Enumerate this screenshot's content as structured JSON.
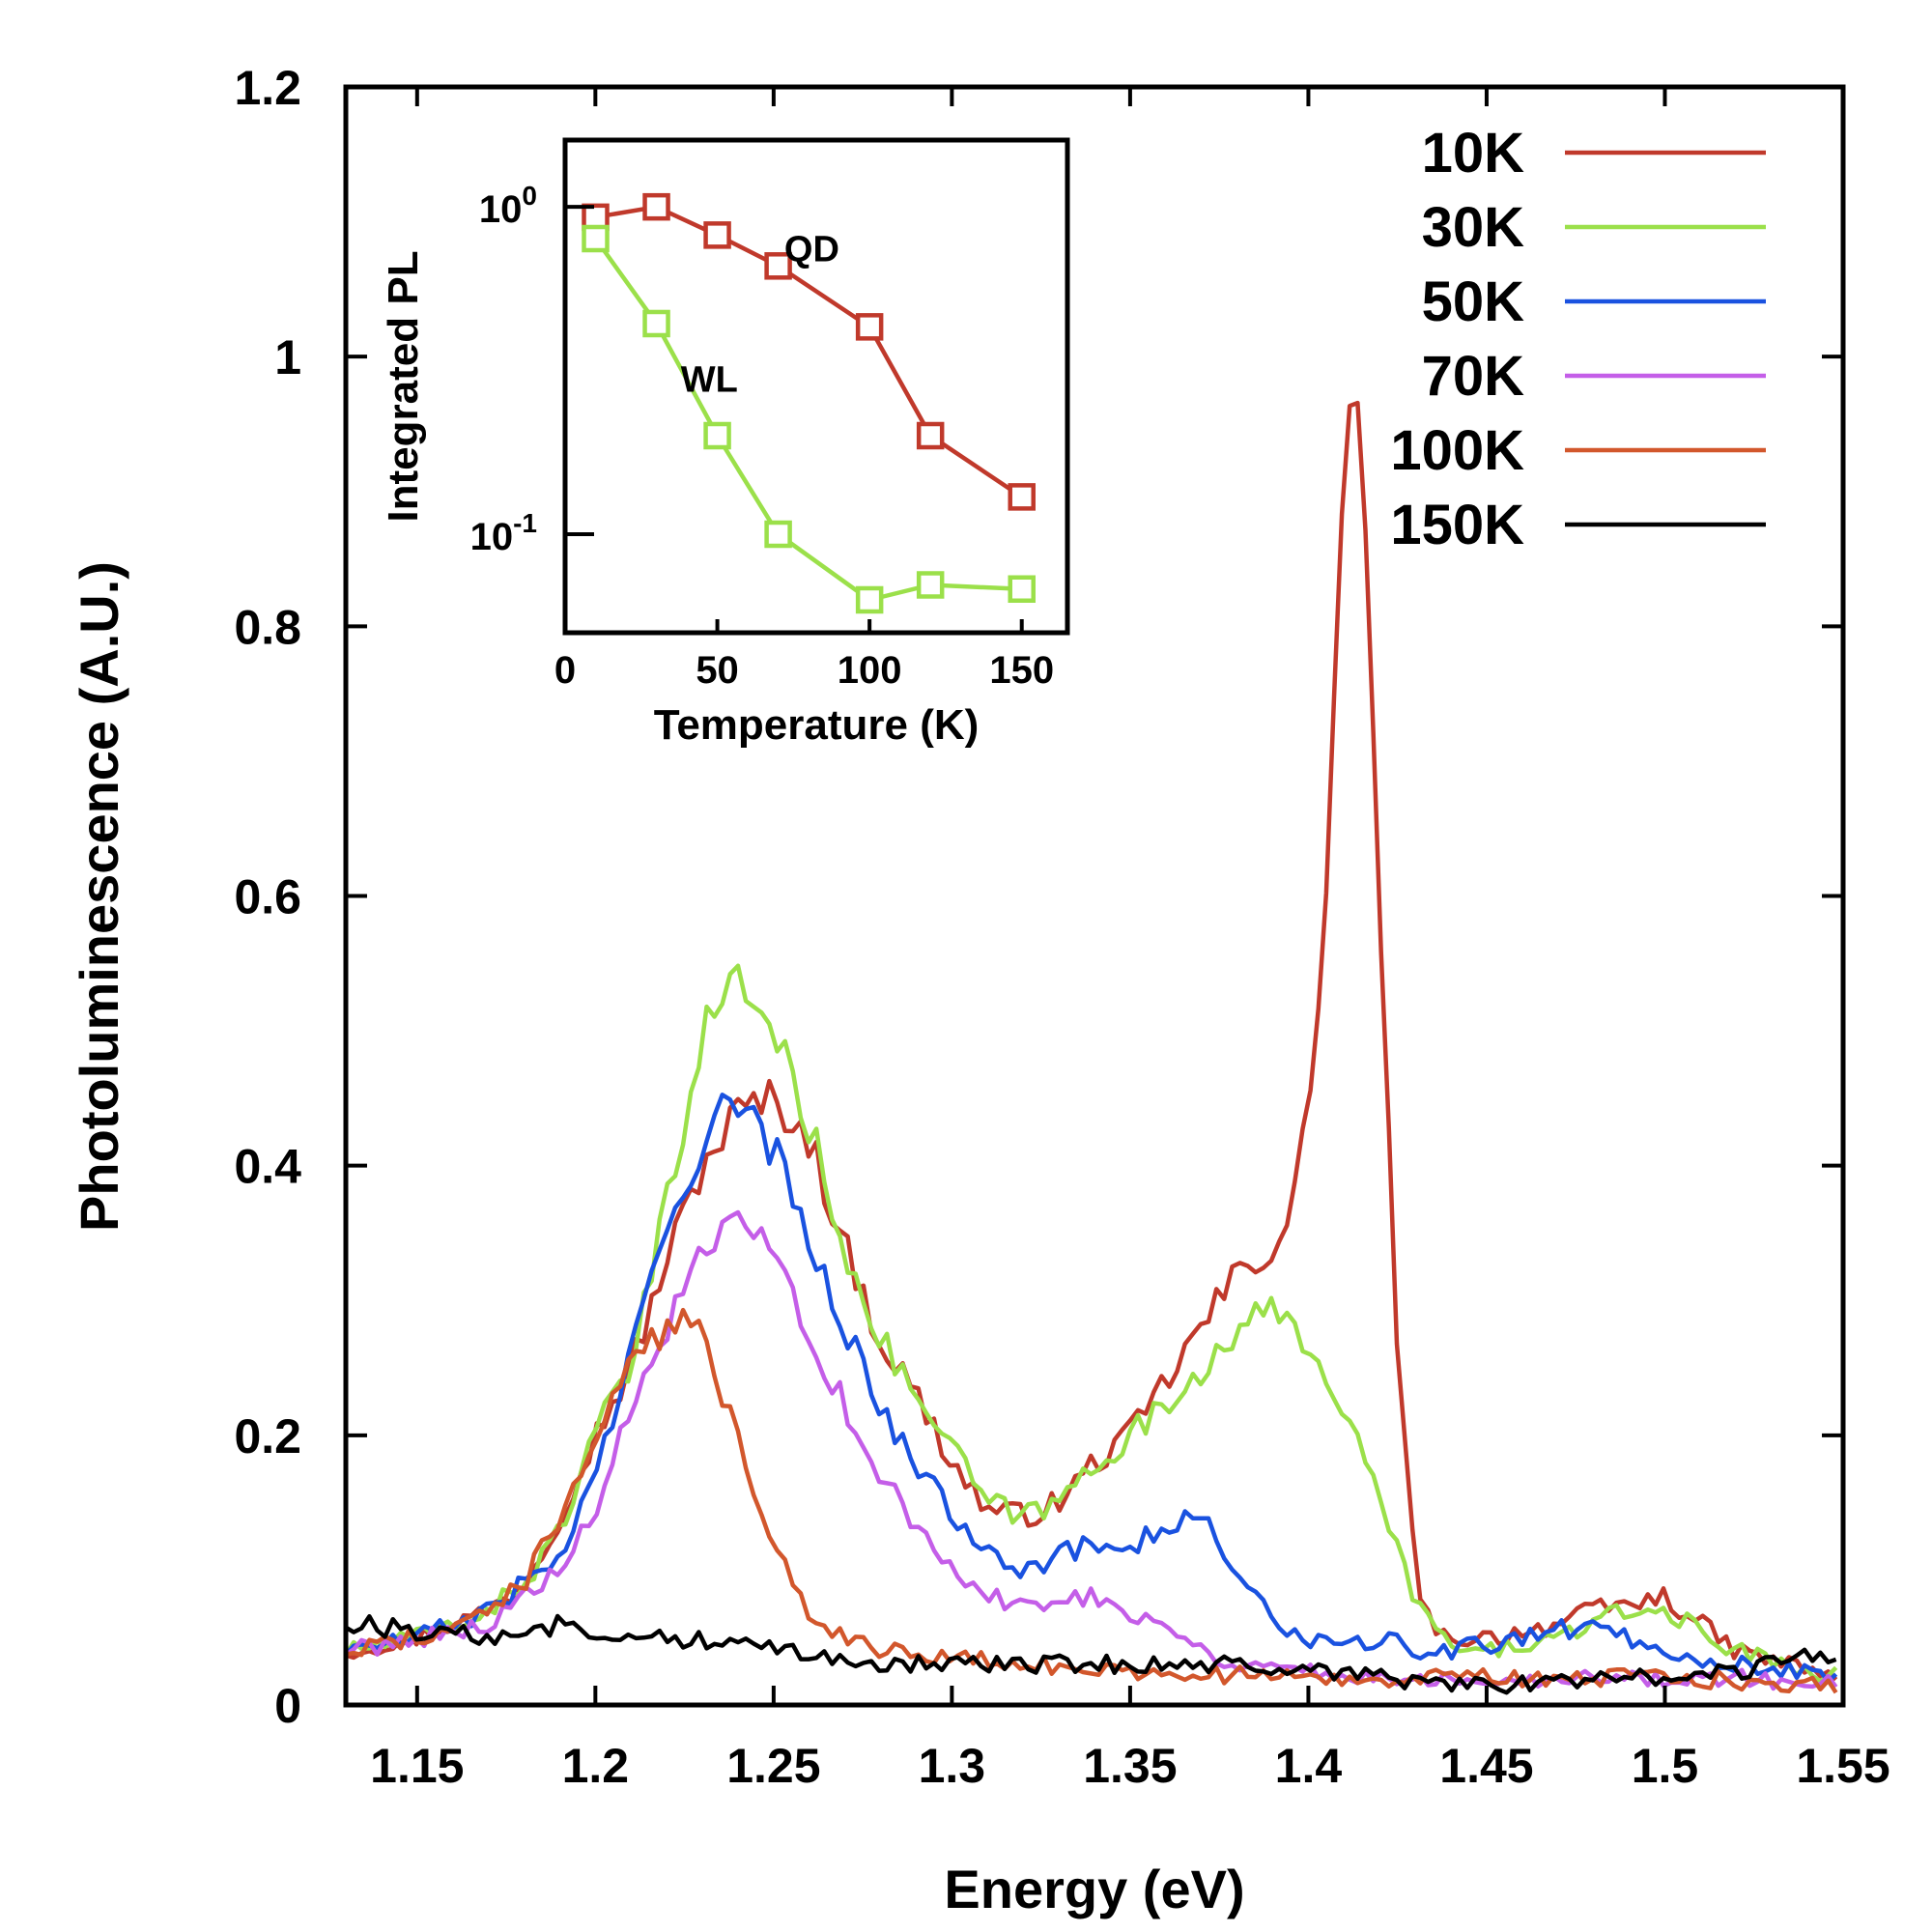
{
  "chart_data": [
    {
      "type": "line",
      "title": "",
      "xlabel": "Energy (eV)",
      "ylabel": "Photoluminescence (A.U.)",
      "xlim": [
        1.13,
        1.55
      ],
      "ylim": [
        0,
        1.2
      ],
      "xticks": [
        1.15,
        1.2,
        1.25,
        1.3,
        1.35,
        1.4,
        1.45,
        1.5,
        1.55
      ],
      "xtick_labels": [
        "1.15",
        "1.2",
        "1.25",
        "1.3",
        "1.35",
        "1.4",
        "1.45",
        "1.5",
        "1.55"
      ],
      "yticks": [
        0,
        0.2,
        0.4,
        0.6,
        0.8,
        1.0,
        1.2
      ],
      "ytick_labels": [
        "0",
        "0.2",
        "0.4",
        "0.6",
        "0.8",
        "1",
        "1.2"
      ],
      "legend_position": "top-right",
      "series": [
        {
          "name": "10K",
          "color": "#c0392b",
          "x": [
            1.13,
            1.15,
            1.17,
            1.18,
            1.19,
            1.2,
            1.21,
            1.22,
            1.23,
            1.24,
            1.25,
            1.26,
            1.27,
            1.28,
            1.29,
            1.3,
            1.31,
            1.32,
            1.33,
            1.34,
            1.35,
            1.36,
            1.37,
            1.38,
            1.385,
            1.39,
            1.395,
            1.4,
            1.405,
            1.41,
            1.4125,
            1.415,
            1.42,
            1.425,
            1.43,
            1.435,
            1.45,
            1.47,
            1.48,
            1.5,
            1.52,
            1.55
          ],
          "y": [
            0.04,
            0.05,
            0.07,
            0.09,
            0.14,
            0.2,
            0.25,
            0.33,
            0.4,
            0.44,
            0.45,
            0.42,
            0.34,
            0.27,
            0.23,
            0.18,
            0.145,
            0.14,
            0.15,
            0.18,
            0.2,
            0.24,
            0.28,
            0.32,
            0.33,
            0.34,
            0.36,
            0.44,
            0.6,
            0.92,
            1.0,
            0.92,
            0.6,
            0.25,
            0.1,
            0.05,
            0.05,
            0.06,
            0.07,
            0.08,
            0.04,
            0.02
          ]
        },
        {
          "name": "30K",
          "color": "#9be04a",
          "x": [
            1.13,
            1.15,
            1.17,
            1.18,
            1.19,
            1.2,
            1.21,
            1.22,
            1.23,
            1.24,
            1.25,
            1.26,
            1.27,
            1.28,
            1.29,
            1.3,
            1.31,
            1.32,
            1.33,
            1.34,
            1.35,
            1.36,
            1.37,
            1.38,
            1.39,
            1.4,
            1.41,
            1.42,
            1.43,
            1.44,
            1.45,
            1.47,
            1.49,
            1.5,
            1.52,
            1.55
          ],
          "y": [
            0.04,
            0.05,
            0.07,
            0.09,
            0.13,
            0.2,
            0.25,
            0.37,
            0.5,
            0.54,
            0.5,
            0.43,
            0.34,
            0.27,
            0.23,
            0.19,
            0.15,
            0.14,
            0.15,
            0.18,
            0.2,
            0.22,
            0.25,
            0.28,
            0.29,
            0.27,
            0.22,
            0.15,
            0.08,
            0.04,
            0.04,
            0.05,
            0.07,
            0.07,
            0.04,
            0.02
          ]
        },
        {
          "name": "50K",
          "color": "#1a52e0",
          "x": [
            1.13,
            1.15,
            1.17,
            1.18,
            1.19,
            1.2,
            1.21,
            1.22,
            1.23,
            1.235,
            1.24,
            1.245,
            1.25,
            1.26,
            1.27,
            1.28,
            1.29,
            1.3,
            1.31,
            1.32,
            1.33,
            1.34,
            1.35,
            1.36,
            1.37,
            1.38,
            1.39,
            1.4,
            1.41,
            1.42,
            1.43,
            1.44,
            1.46,
            1.48,
            1.49,
            1.5,
            1.52,
            1.55
          ],
          "y": [
            0.04,
            0.05,
            0.07,
            0.09,
            0.11,
            0.17,
            0.26,
            0.35,
            0.42,
            0.45,
            0.43,
            0.43,
            0.41,
            0.35,
            0.28,
            0.22,
            0.18,
            0.14,
            0.12,
            0.1,
            0.11,
            0.12,
            0.12,
            0.13,
            0.14,
            0.1,
            0.06,
            0.05,
            0.04,
            0.05,
            0.04,
            0.04,
            0.05,
            0.06,
            0.05,
            0.04,
            0.03,
            0.02
          ]
        },
        {
          "name": "70K",
          "color": "#c45ee8",
          "x": [
            1.13,
            1.15,
            1.17,
            1.18,
            1.19,
            1.2,
            1.21,
            1.22,
            1.23,
            1.24,
            1.25,
            1.26,
            1.27,
            1.28,
            1.29,
            1.3,
            1.31,
            1.32,
            1.33,
            1.34,
            1.35,
            1.36,
            1.37,
            1.38,
            1.39,
            1.4,
            1.42,
            1.45,
            1.48,
            1.5,
            1.52,
            1.55
          ],
          "y": [
            0.04,
            0.05,
            0.06,
            0.08,
            0.1,
            0.14,
            0.22,
            0.28,
            0.33,
            0.36,
            0.33,
            0.28,
            0.22,
            0.17,
            0.13,
            0.1,
            0.08,
            0.075,
            0.08,
            0.08,
            0.07,
            0.06,
            0.04,
            0.03,
            0.03,
            0.025,
            0.02,
            0.02,
            0.02,
            0.02,
            0.02,
            0.015
          ]
        },
        {
          "name": "100K",
          "color": "#d2572c",
          "x": [
            1.13,
            1.15,
            1.17,
            1.18,
            1.19,
            1.2,
            1.21,
            1.22,
            1.225,
            1.23,
            1.24,
            1.25,
            1.26,
            1.27,
            1.28,
            1.29,
            1.3,
            1.32,
            1.35,
            1.4,
            1.45,
            1.5,
            1.55
          ],
          "y": [
            0.04,
            0.05,
            0.07,
            0.09,
            0.14,
            0.2,
            0.25,
            0.28,
            0.285,
            0.27,
            0.2,
            0.12,
            0.07,
            0.05,
            0.04,
            0.04,
            0.035,
            0.03,
            0.025,
            0.02,
            0.02,
            0.02,
            0.015
          ]
        },
        {
          "name": "150K",
          "color": "#000000",
          "x": [
            1.13,
            1.15,
            1.17,
            1.19,
            1.2,
            1.22,
            1.24,
            1.26,
            1.28,
            1.3,
            1.32,
            1.34,
            1.36,
            1.38,
            1.4,
            1.42,
            1.44,
            1.46,
            1.48,
            1.5,
            1.52,
            1.54,
            1.55
          ],
          "y": [
            0.06,
            0.055,
            0.05,
            0.06,
            0.055,
            0.05,
            0.045,
            0.04,
            0.03,
            0.03,
            0.03,
            0.03,
            0.03,
            0.03,
            0.025,
            0.02,
            0.015,
            0.015,
            0.02,
            0.02,
            0.025,
            0.035,
            0.03
          ]
        }
      ]
    },
    {
      "type": "line",
      "title": "",
      "xlabel": "Temperature (K)",
      "ylabel": "Integrated PL",
      "yscale": "log",
      "xlim": [
        0,
        165
      ],
      "ylim": [
        0.05,
        1.6
      ],
      "xticks": [
        0,
        50,
        100,
        150
      ],
      "xtick_labels": [
        "0",
        "50",
        "100",
        "150"
      ],
      "yticks": [
        {
          "value": 1.0,
          "base": "10",
          "exp": "0"
        },
        {
          "value": 0.1,
          "base": "10",
          "exp": "-1"
        }
      ],
      "legend_position": "none",
      "annotations": [
        {
          "text": "QD",
          "x": 72,
          "y": 0.75
        },
        {
          "text": "WL",
          "x": 38,
          "y": 0.3
        }
      ],
      "series": [
        {
          "name": "QD",
          "color": "#c0392b",
          "marker": "square",
          "x": [
            10,
            30,
            50,
            70,
            100,
            120,
            150
          ],
          "y": [
            0.93,
            1.0,
            0.82,
            0.66,
            0.43,
            0.2,
            0.13
          ]
        },
        {
          "name": "WL",
          "color": "#9be04a",
          "marker": "square",
          "x": [
            10,
            30,
            50,
            70,
            100,
            120,
            150
          ],
          "y": [
            0.8,
            0.44,
            0.2,
            0.1,
            0.063,
            0.07,
            0.068
          ]
        }
      ]
    }
  ]
}
